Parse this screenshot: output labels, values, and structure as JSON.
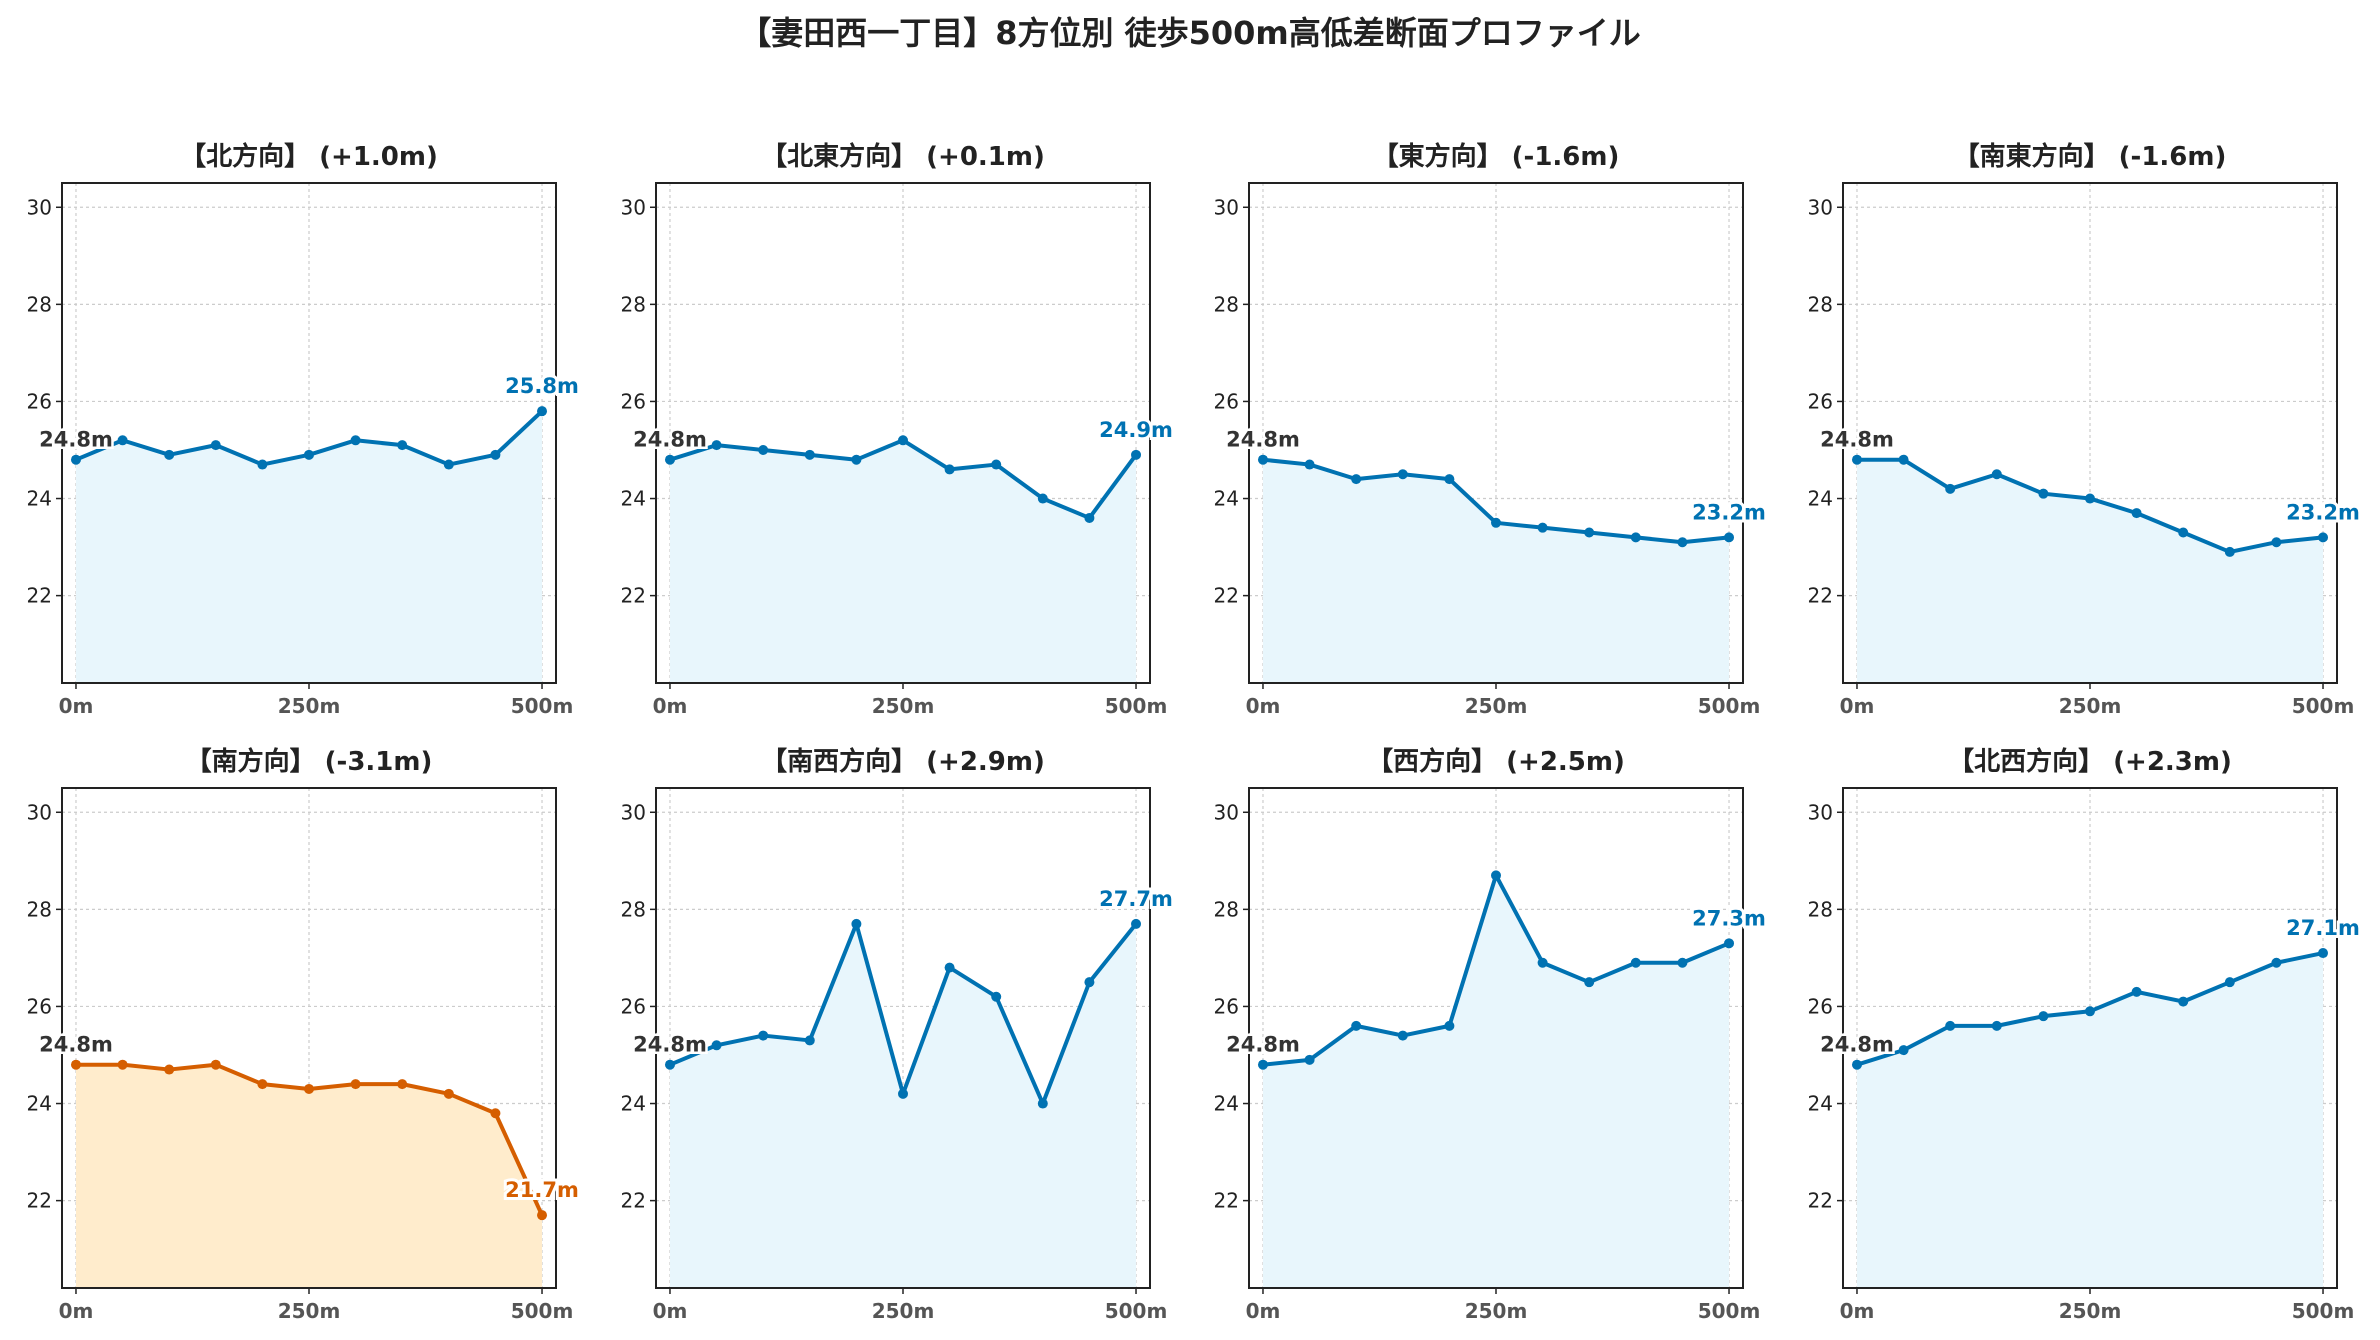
{
  "title": "【妻田西一丁目】8方位別 徒歩500m高低差断面プロファイル",
  "colors": {
    "up_line": "#0072b2",
    "up_fill": "#e8f6fc",
    "down_line": "#d55e00",
    "down_fill": "#ffeccc",
    "start_label": "#333333",
    "grid": "#cccccc"
  },
  "chart_data": [
    {
      "type": "area",
      "title": "【北方向】 (+1.0m)",
      "highlight": false,
      "x": [
        0,
        50,
        100,
        150,
        200,
        250,
        300,
        350,
        400,
        450,
        500
      ],
      "values": [
        24.8,
        25.2,
        24.9,
        25.1,
        24.7,
        24.9,
        25.2,
        25.1,
        24.7,
        24.9,
        25.8
      ],
      "start_label": "24.8m",
      "end_label": "25.8m",
      "xticklabels": [
        "0m",
        "250m",
        "500m"
      ],
      "yticks": [
        22,
        24,
        26,
        28,
        30
      ],
      "xlim": [
        -15,
        515
      ],
      "ylim": [
        20.2,
        30.5
      ],
      "grid": true
    },
    {
      "type": "area",
      "title": "【北東方向】 (+0.1m)",
      "highlight": false,
      "x": [
        0,
        50,
        100,
        150,
        200,
        250,
        300,
        350,
        400,
        450,
        500
      ],
      "values": [
        24.8,
        25.1,
        25.0,
        24.9,
        24.8,
        25.2,
        24.6,
        24.7,
        24.0,
        23.6,
        24.9
      ],
      "start_label": "24.8m",
      "end_label": "24.9m",
      "xticklabels": [
        "0m",
        "250m",
        "500m"
      ],
      "yticks": [
        22,
        24,
        26,
        28,
        30
      ],
      "xlim": [
        -15,
        515
      ],
      "ylim": [
        20.2,
        30.5
      ],
      "grid": true
    },
    {
      "type": "area",
      "title": "【東方向】 (-1.6m)",
      "highlight": false,
      "x": [
        0,
        50,
        100,
        150,
        200,
        250,
        300,
        350,
        400,
        450,
        500
      ],
      "values": [
        24.8,
        24.7,
        24.4,
        24.5,
        24.4,
        23.5,
        23.4,
        23.3,
        23.2,
        23.1,
        23.2
      ],
      "start_label": "24.8m",
      "end_label": "23.2m",
      "xticklabels": [
        "0m",
        "250m",
        "500m"
      ],
      "yticks": [
        22,
        24,
        26,
        28,
        30
      ],
      "xlim": [
        -15,
        515
      ],
      "ylim": [
        20.2,
        30.5
      ],
      "grid": true
    },
    {
      "type": "area",
      "title": "【南東方向】 (-1.6m)",
      "highlight": false,
      "x": [
        0,
        50,
        100,
        150,
        200,
        250,
        300,
        350,
        400,
        450,
        500
      ],
      "values": [
        24.8,
        24.8,
        24.2,
        24.5,
        24.1,
        24.0,
        23.7,
        23.3,
        22.9,
        23.1,
        23.2
      ],
      "start_label": "24.8m",
      "end_label": "23.2m",
      "xticklabels": [
        "0m",
        "250m",
        "500m"
      ],
      "yticks": [
        22,
        24,
        26,
        28,
        30
      ],
      "xlim": [
        -15,
        515
      ],
      "ylim": [
        20.2,
        30.5
      ],
      "grid": true
    },
    {
      "type": "area",
      "title": "【南方向】 (-3.1m)",
      "highlight": true,
      "x": [
        0,
        50,
        100,
        150,
        200,
        250,
        300,
        350,
        400,
        450,
        500
      ],
      "values": [
        24.8,
        24.8,
        24.7,
        24.8,
        24.4,
        24.3,
        24.4,
        24.4,
        24.2,
        23.8,
        21.7
      ],
      "start_label": "24.8m",
      "end_label": "21.7m",
      "xticklabels": [
        "0m",
        "250m",
        "500m"
      ],
      "yticks": [
        22,
        24,
        26,
        28,
        30
      ],
      "xlim": [
        -15,
        515
      ],
      "ylim": [
        20.2,
        30.5
      ],
      "grid": true
    },
    {
      "type": "area",
      "title": "【南西方向】 (+2.9m)",
      "highlight": false,
      "x": [
        0,
        50,
        100,
        150,
        200,
        250,
        300,
        350,
        400,
        450,
        500
      ],
      "values": [
        24.8,
        25.2,
        25.4,
        25.3,
        27.7,
        24.2,
        26.8,
        26.2,
        24.0,
        26.5,
        27.7
      ],
      "start_label": "24.8m",
      "end_label": "27.7m",
      "xticklabels": [
        "0m",
        "250m",
        "500m"
      ],
      "yticks": [
        22,
        24,
        26,
        28,
        30
      ],
      "xlim": [
        -15,
        515
      ],
      "ylim": [
        20.2,
        30.5
      ],
      "grid": true
    },
    {
      "type": "area",
      "title": "【西方向】 (+2.5m)",
      "highlight": false,
      "x": [
        0,
        50,
        100,
        150,
        200,
        250,
        300,
        350,
        400,
        450,
        500
      ],
      "values": [
        24.8,
        24.9,
        25.6,
        25.4,
        25.6,
        28.7,
        26.9,
        26.5,
        26.9,
        26.9,
        27.3
      ],
      "start_label": "24.8m",
      "end_label": "27.3m",
      "xticklabels": [
        "0m",
        "250m",
        "500m"
      ],
      "yticks": [
        22,
        24,
        26,
        28,
        30
      ],
      "xlim": [
        -15,
        515
      ],
      "ylim": [
        20.2,
        30.5
      ],
      "grid": true
    },
    {
      "type": "area",
      "title": "【北西方向】 (+2.3m)",
      "highlight": false,
      "x": [
        0,
        50,
        100,
        150,
        200,
        250,
        300,
        350,
        400,
        450,
        500
      ],
      "values": [
        24.8,
        25.1,
        25.6,
        25.6,
        25.8,
        25.9,
        26.3,
        26.1,
        26.5,
        26.9,
        27.1
      ],
      "start_label": "24.8m",
      "end_label": "27.1m",
      "xticklabels": [
        "0m",
        "250m",
        "500m"
      ],
      "yticks": [
        22,
        24,
        26,
        28,
        30
      ],
      "xlim": [
        -15,
        515
      ],
      "ylim": [
        20.2,
        30.5
      ],
      "grid": true
    }
  ]
}
